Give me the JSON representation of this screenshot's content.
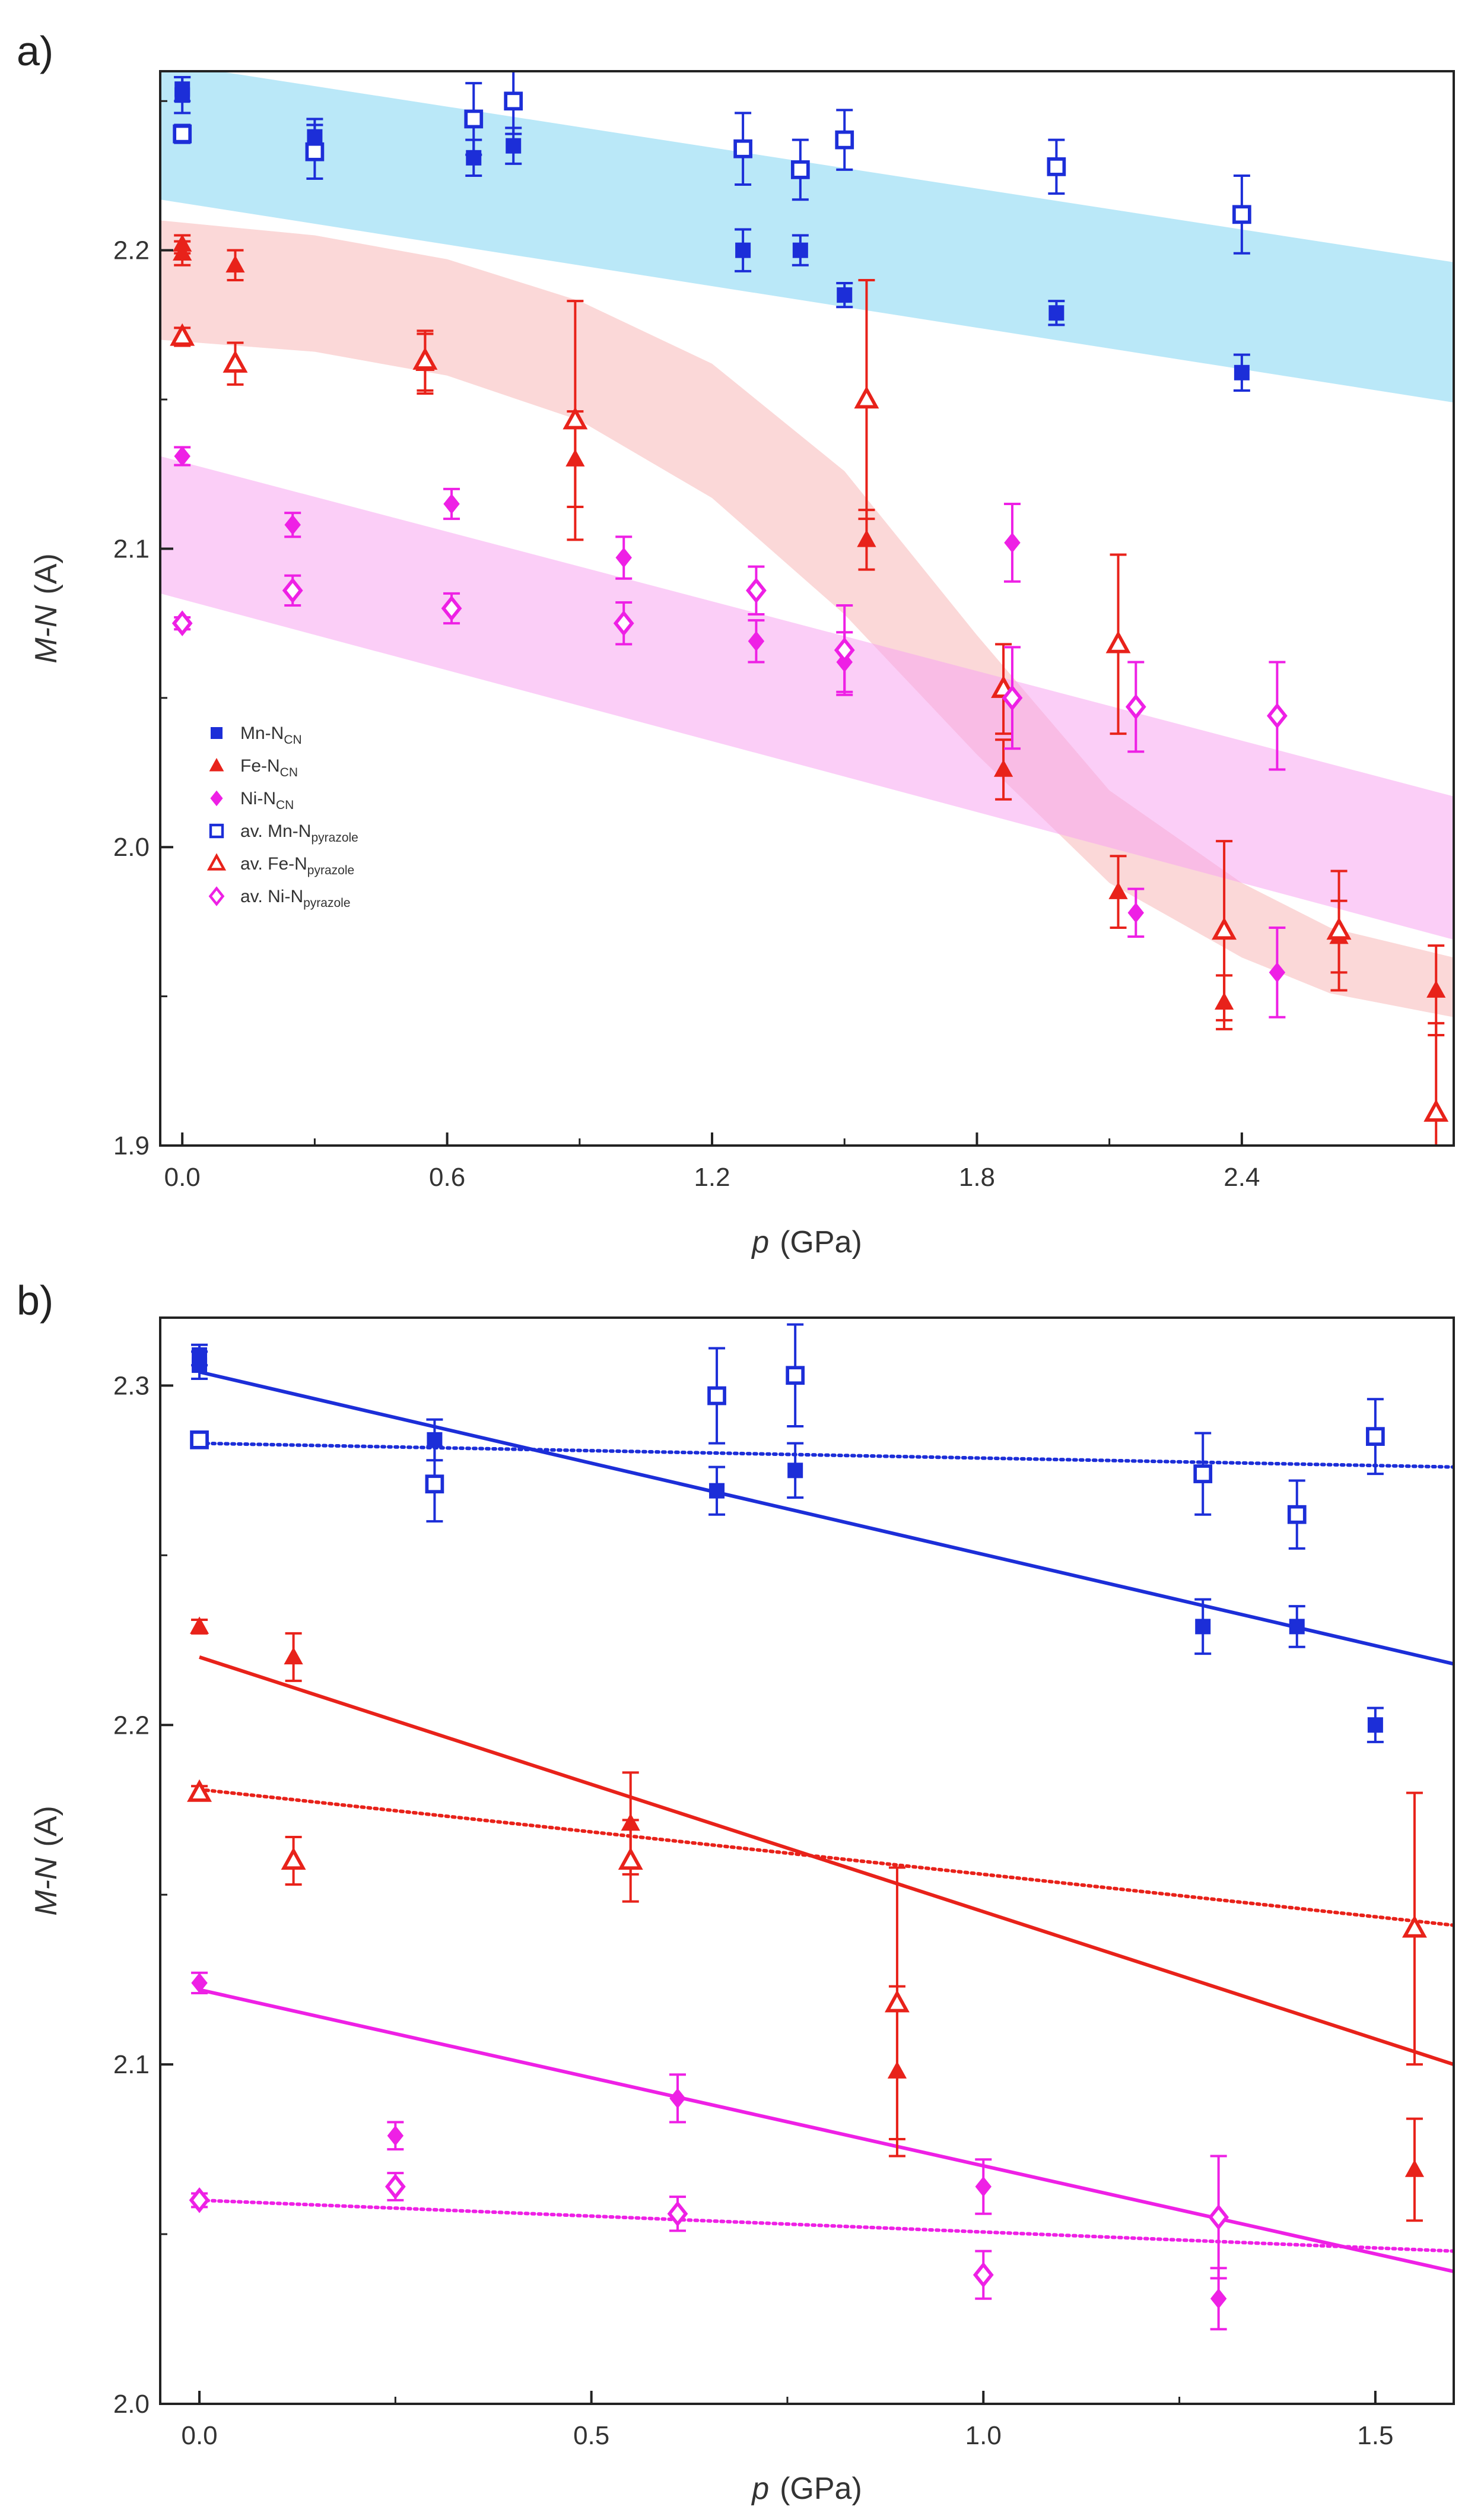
{
  "chart_data": [
    {
      "panel": "a)",
      "type": "scatter",
      "title": "",
      "xlabel": "p",
      "xlabel_unit": "(GPa)",
      "ylabel": "M-N",
      "ylabel_unit": "(A)",
      "xlim": [
        -0.05,
        2.88
      ],
      "ylim": [
        1.9,
        2.26
      ],
      "xticks": [
        0.0,
        0.6,
        1.2,
        1.8,
        2.4
      ],
      "xtick_labels": [
        "0.0",
        "0.6",
        "1.2",
        "1.8",
        "2.4"
      ],
      "yticks": [
        1.9,
        2.0,
        2.1,
        2.2
      ],
      "ytick_labels": [
        "1.9",
        "2.0",
        "2.1",
        "2.2"
      ],
      "legend_position": "center-left",
      "bands": [
        {
          "name": "Mn band",
          "color": "#aee4f7",
          "opacity": 0.85,
          "x": [
            -0.05,
            2.88
          ],
          "lower": [
            2.217,
            2.149
          ],
          "upper": [
            2.263,
            2.196
          ]
        },
        {
          "name": "Fe band",
          "color": "#f8b8b8",
          "opacity": 0.55,
          "x": [
            -0.05,
            0.3,
            0.6,
            0.9,
            1.2,
            1.5,
            1.8,
            2.1,
            2.4,
            2.6,
            2.88
          ],
          "lower": [
            2.17,
            2.166,
            2.158,
            2.143,
            2.117,
            2.078,
            2.031,
            1.988,
            1.963,
            1.951,
            1.943
          ],
          "upper": [
            2.21,
            2.205,
            2.197,
            2.183,
            2.162,
            2.126,
            2.071,
            2.019,
            1.988,
            1.973,
            1.963
          ]
        },
        {
          "name": "Ni band",
          "color": "#f7a6f0",
          "opacity": 0.55,
          "x": [
            -0.05,
            2.88
          ],
          "lower": [
            2.085,
            1.969
          ],
          "upper": [
            2.131,
            2.017
          ]
        }
      ],
      "series": [
        {
          "name": "Mn-N",
          "sub": "CN",
          "color": "#1c2ed8",
          "marker": "square",
          "filled": true,
          "points": [
            [
              0.0,
              2.252,
              0.006
            ],
            [
              0.0,
              2.254,
              0.004
            ],
            [
              0.3,
              2.238,
              0.006
            ],
            [
              0.66,
              2.231,
              0.006
            ],
            [
              0.75,
              2.235,
              0.006
            ],
            [
              1.27,
              2.2,
              0.007
            ],
            [
              1.4,
              2.2,
              0.005
            ],
            [
              1.5,
              2.185,
              0.004
            ],
            [
              1.98,
              2.179,
              0.004
            ],
            [
              2.4,
              2.159,
              0.006
            ]
          ]
        },
        {
          "name": "Fe-N",
          "sub": "CN",
          "color": "#e8221a",
          "marker": "triangle",
          "filled": true,
          "points": [
            [
              0.0,
              2.199,
              0.004
            ],
            [
              0.0,
              2.202,
              0.003
            ],
            [
              0.12,
              2.195,
              0.005
            ],
            [
              0.55,
              2.162,
              0.01
            ],
            [
              0.89,
              2.13,
              0.016
            ],
            [
              1.55,
              2.103,
              0.01
            ],
            [
              1.86,
              2.026,
              0.01
            ],
            [
              2.12,
              1.985,
              0.012
            ],
            [
              2.36,
              1.948,
              0.009
            ],
            [
              2.62,
              1.97,
              0.012
            ],
            [
              2.84,
              1.952,
              0.015
            ]
          ]
        },
        {
          "name": "Ni-N",
          "sub": "CN",
          "color": "#ee20e5",
          "marker": "diamond",
          "filled": true,
          "points": [
            [
              0.0,
              2.131,
              0.003
            ],
            [
              0.25,
              2.108,
              0.004
            ],
            [
              0.61,
              2.115,
              0.005
            ],
            [
              1.0,
              2.097,
              0.007
            ],
            [
              1.3,
              2.069,
              0.007
            ],
            [
              1.5,
              2.062,
              0.01
            ],
            [
              1.88,
              2.102,
              0.013
            ],
            [
              2.16,
              1.978,
              0.008
            ],
            [
              2.48,
              1.958,
              0.015
            ]
          ]
        },
        {
          "name": "av. Mn-N",
          "sub": "pyrazole",
          "color": "#1c2ed8",
          "marker": "square",
          "filled": false,
          "points": [
            [
              0.0,
              2.239,
              0.003
            ],
            [
              0.3,
              2.233,
              0.009
            ],
            [
              0.66,
              2.244,
              0.012
            ],
            [
              0.75,
              2.25,
              0.011
            ],
            [
              1.27,
              2.234,
              0.012
            ],
            [
              1.4,
              2.227,
              0.01
            ],
            [
              1.5,
              2.237,
              0.01
            ],
            [
              1.98,
              2.228,
              0.009
            ],
            [
              2.4,
              2.212,
              0.013
            ]
          ]
        },
        {
          "name": "av. Fe-N",
          "sub": "pyrazole",
          "color": "#e8221a",
          "marker": "triangle",
          "filled": false,
          "points": [
            [
              0.0,
              2.171,
              0.003
            ],
            [
              0.12,
              2.162,
              0.007
            ],
            [
              0.55,
              2.163,
              0.01
            ],
            [
              0.89,
              2.143,
              0.04
            ],
            [
              1.55,
              2.15,
              0.04
            ],
            [
              1.86,
              2.053,
              0.015
            ],
            [
              2.12,
              2.068,
              0.03
            ],
            [
              2.36,
              1.972,
              0.03
            ],
            [
              2.62,
              1.972,
              0.02
            ],
            [
              2.84,
              1.911,
              0.03
            ]
          ]
        },
        {
          "name": "av. Ni-N",
          "sub": "pyrazole",
          "color": "#ee20e5",
          "marker": "diamond",
          "filled": false,
          "points": [
            [
              0.0,
              2.075,
              0.002
            ],
            [
              0.25,
              2.086,
              0.005
            ],
            [
              0.61,
              2.08,
              0.005
            ],
            [
              1.0,
              2.075,
              0.007
            ],
            [
              1.3,
              2.086,
              0.008
            ],
            [
              1.5,
              2.066,
              0.015
            ],
            [
              1.88,
              2.05,
              0.017
            ],
            [
              2.16,
              2.047,
              0.015
            ],
            [
              2.48,
              2.044,
              0.018
            ]
          ]
        }
      ]
    },
    {
      "panel": "b)",
      "type": "scatter",
      "title": "",
      "xlabel": "p",
      "xlabel_unit": "(GPa)",
      "ylabel": "M-N",
      "ylabel_unit": "(A)",
      "xlim": [
        -0.05,
        1.6
      ],
      "ylim": [
        2.0,
        2.32
      ],
      "xticks": [
        0.0,
        0.5,
        1.0,
        1.5
      ],
      "xtick_labels": [
        "0.0",
        "0.5",
        "1.0",
        "1.5"
      ],
      "yticks": [
        2.0,
        2.1,
        2.2,
        2.3
      ],
      "ytick_labels": [
        "2.0",
        "2.1",
        "2.2",
        "2.3"
      ],
      "fits": [
        {
          "name": "Mn-N CN fit",
          "color": "#1c2ed8",
          "style": "solid",
          "x": [
            0.0,
            1.6
          ],
          "y": [
            2.304,
            2.218
          ]
        },
        {
          "name": "Mn-N pyrazole fit",
          "color": "#1c2ed8",
          "style": "dotted",
          "x": [
            0.0,
            1.6
          ],
          "y": [
            2.283,
            2.276
          ]
        },
        {
          "name": "Fe-N CN fit",
          "color": "#e8221a",
          "style": "solid",
          "x": [
            0.0,
            1.6
          ],
          "y": [
            2.22,
            2.1
          ]
        },
        {
          "name": "Fe-N pyrazole fit",
          "color": "#e8221a",
          "style": "dotted",
          "x": [
            0.0,
            1.6
          ],
          "y": [
            2.181,
            2.141
          ]
        },
        {
          "name": "Ni-N CN fit",
          "color": "#ee20e5",
          "style": "solid",
          "x": [
            0.0,
            1.6
          ],
          "y": [
            2.122,
            2.039
          ]
        },
        {
          "name": "Ni-N pyrazole fit",
          "color": "#ee20e5",
          "style": "dotted",
          "x": [
            0.0,
            1.6
          ],
          "y": [
            2.06,
            2.045
          ]
        }
      ],
      "series": [
        {
          "name": "Mn-N CN",
          "color": "#1c2ed8",
          "marker": "square",
          "filled": true,
          "points": [
            [
              0.0,
              2.306,
              0.004
            ],
            [
              0.0,
              2.309,
              0.003
            ],
            [
              0.3,
              2.284,
              0.006
            ],
            [
              0.66,
              2.269,
              0.007
            ],
            [
              0.76,
              2.275,
              0.008
            ],
            [
              1.28,
              2.229,
              0.008
            ],
            [
              1.4,
              2.229,
              0.006
            ],
            [
              1.5,
              2.2,
              0.005
            ]
          ]
        },
        {
          "name": "Fe-N CN",
          "color": "#e8221a",
          "marker": "triangle",
          "filled": true,
          "points": [
            [
              0.0,
              2.229,
              0.002
            ],
            [
              0.12,
              2.22,
              0.007
            ],
            [
              0.55,
              2.171,
              0.015
            ],
            [
              0.89,
              2.098,
              0.025
            ],
            [
              1.55,
              2.069,
              0.015
            ]
          ]
        },
        {
          "name": "Ni-N CN",
          "color": "#ee20e5",
          "marker": "diamond",
          "filled": true,
          "points": [
            [
              0.0,
              2.124,
              0.003
            ],
            [
              0.25,
              2.079,
              0.004
            ],
            [
              0.61,
              2.09,
              0.007
            ],
            [
              1.0,
              2.064,
              0.008
            ],
            [
              1.3,
              2.031,
              0.009
            ]
          ]
        },
        {
          "name": "Mn-N pyrazole",
          "color": "#1c2ed8",
          "marker": "square",
          "filled": false,
          "points": [
            [
              0.0,
              2.284,
              0.002
            ],
            [
              0.3,
              2.271,
              0.011
            ],
            [
              0.66,
              2.297,
              0.014
            ],
            [
              0.76,
              2.303,
              0.015
            ],
            [
              1.28,
              2.274,
              0.012
            ],
            [
              1.4,
              2.262,
              0.01
            ],
            [
              1.5,
              2.285,
              0.011
            ]
          ]
        },
        {
          "name": "Fe-N pyrazole",
          "color": "#e8221a",
          "marker": "triangle",
          "filled": false,
          "points": [
            [
              0.0,
              2.18,
              0.002
            ],
            [
              0.12,
              2.16,
              0.007
            ],
            [
              0.55,
              2.16,
              0.012
            ],
            [
              0.89,
              2.118,
              0.04
            ],
            [
              1.55,
              2.14,
              0.04
            ]
          ]
        },
        {
          "name": "Ni-N pyrazole",
          "color": "#ee20e5",
          "marker": "diamond",
          "filled": false,
          "points": [
            [
              0.0,
              2.06,
              0.002
            ],
            [
              0.25,
              2.064,
              0.004
            ],
            [
              0.61,
              2.056,
              0.005
            ],
            [
              1.0,
              2.038,
              0.007
            ],
            [
              1.3,
              2.055,
              0.018
            ]
          ]
        }
      ]
    }
  ]
}
